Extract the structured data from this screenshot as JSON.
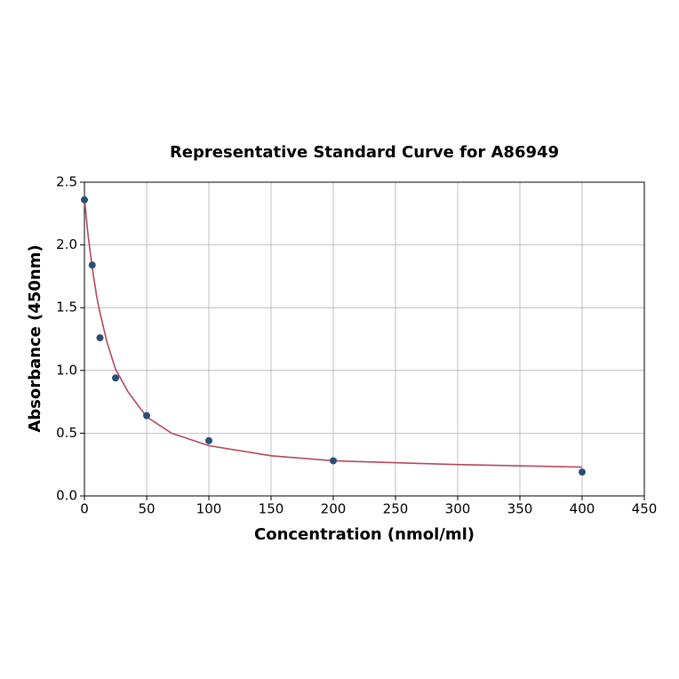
{
  "chart_data": {
    "type": "scatter",
    "title": "Representative Standard Curve for A86949",
    "x_label": "Concentration (nmol/ml)",
    "y_label": "Absorbance (450nm)",
    "points": {
      "color": "#2b4f72",
      "x": [
        0,
        6.25,
        12.5,
        25,
        50,
        100,
        200,
        400
      ],
      "y": [
        2.36,
        1.84,
        1.26,
        0.94,
        0.64,
        0.44,
        0.28,
        0.19
      ]
    },
    "curve": {
      "color": "#b5475f",
      "x": [
        0,
        3,
        6.25,
        10,
        12.5,
        18,
        25,
        35,
        50,
        70,
        100,
        150,
        200,
        300,
        400
      ],
      "y": [
        2.37,
        2.07,
        1.82,
        1.58,
        1.46,
        1.23,
        1.01,
        0.83,
        0.63,
        0.5,
        0.4,
        0.32,
        0.28,
        0.25,
        0.23
      ]
    },
    "xlim": [
      0,
      450
    ],
    "xticks": [
      0,
      50,
      100,
      150,
      200,
      250,
      300,
      350,
      400,
      450
    ],
    "ylim": [
      0,
      2.5
    ],
    "yticks": [
      {
        "value": 0,
        "label": "0.0"
      },
      0.5,
      {
        "value": 1,
        "label": "1.0"
      },
      1.5,
      {
        "value": 2,
        "label": "2.0"
      },
      2.5
    ],
    "grid": true
  }
}
